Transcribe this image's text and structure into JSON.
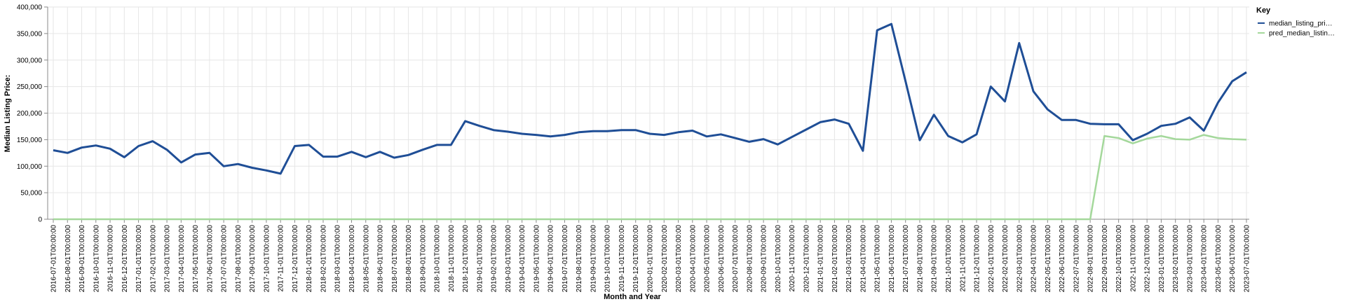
{
  "chart_data": {
    "type": "line",
    "xlabel": "Month and Year",
    "ylabel": "Median Listing Price:",
    "ylim": [
      0,
      400000
    ],
    "yticks": [
      0,
      50000,
      100000,
      150000,
      200000,
      250000,
      300000,
      350000,
      400000
    ],
    "y_tick_labels": [
      "0",
      "50,000",
      "100,000",
      "150,000",
      "200,000",
      "250,000",
      "300,000",
      "350,000",
      "400,000"
    ],
    "grid": true,
    "legend": {
      "title": "Key",
      "placement": "right",
      "labels": [
        "median_listing_pri…",
        "pred_median_listin…"
      ]
    },
    "x": [
      "2016-07-01T00:00:00",
      "2016-08-01T00:00:00",
      "2016-09-01T00:00:00",
      "2016-10-01T00:00:00",
      "2016-11-01T00:00:00",
      "2016-12-01T00:00:00",
      "2017-01-01T00:00:00",
      "2017-02-01T00:00:00",
      "2017-03-01T00:00:00",
      "2017-04-01T00:00:00",
      "2017-05-01T00:00:00",
      "2017-06-01T00:00:00",
      "2017-07-01T00:00:00",
      "2017-08-01T00:00:00",
      "2017-09-01T00:00:00",
      "2017-10-01T00:00:00",
      "2017-11-01T00:00:00",
      "2017-12-01T00:00:00",
      "2018-01-01T00:00:00",
      "2018-02-01T00:00:00",
      "2018-03-01T00:00:00",
      "2018-04-01T00:00:00",
      "2018-05-01T00:00:00",
      "2018-06-01T00:00:00",
      "2018-07-01T00:00:00",
      "2018-08-01T00:00:00",
      "2018-09-01T00:00:00",
      "2018-10-01T00:00:00",
      "2018-11-01T00:00:00",
      "2018-12-01T00:00:00",
      "2019-01-01T00:00:00",
      "2019-02-01T00:00:00",
      "2019-03-01T00:00:00",
      "2019-04-01T00:00:00",
      "2019-05-01T00:00:00",
      "2019-06-01T00:00:00",
      "2019-07-01T00:00:00",
      "2019-08-01T00:00:00",
      "2019-09-01T00:00:00",
      "2019-10-01T00:00:00",
      "2019-11-01T00:00:00",
      "2019-12-01T00:00:00",
      "2020-01-01T00:00:00",
      "2020-02-01T00:00:00",
      "2020-03-01T00:00:00",
      "2020-04-01T00:00:00",
      "2020-05-01T00:00:00",
      "2020-06-01T00:00:00",
      "2020-07-01T00:00:00",
      "2020-08-01T00:00:00",
      "2020-09-01T00:00:00",
      "2020-10-01T00:00:00",
      "2020-11-01T00:00:00",
      "2020-12-01T00:00:00",
      "2021-01-01T00:00:00",
      "2021-02-01T00:00:00",
      "2021-03-01T00:00:00",
      "2021-04-01T00:00:00",
      "2021-05-01T00:00:00",
      "2021-06-01T00:00:00",
      "2021-07-01T00:00:00",
      "2021-08-01T00:00:00",
      "2021-09-01T00:00:00",
      "2021-10-01T00:00:00",
      "2021-11-01T00:00:00",
      "2021-12-01T00:00:00",
      "2022-01-01T00:00:00",
      "2022-02-01T00:00:00",
      "2022-03-01T00:00:00",
      "2022-04-01T00:00:00",
      "2022-05-01T00:00:00",
      "2022-06-01T00:00:00",
      "2022-07-01T00:00:00",
      "2022-08-01T00:00:00",
      "2022-09-01T00:00:00",
      "2022-10-01T00:00:00",
      "2022-11-01T00:00:00",
      "2022-12-01T00:00:00",
      "2023-01-01T00:00:00",
      "2023-02-01T00:00:00",
      "2023-03-01T00:00:00",
      "2023-04-01T00:00:00",
      "2023-05-01T00:00:00",
      "2023-06-01T00:00:00",
      "2023-07-01T00:00:00"
    ],
    "series": [
      {
        "name": "median_listing_pri…",
        "color": "#1f4e96",
        "values": [
          130000,
          125000,
          135000,
          139000,
          133000,
          117000,
          138000,
          147000,
          131000,
          107000,
          122000,
          125000,
          100000,
          104000,
          97000,
          92000,
          86000,
          138000,
          140000,
          118000,
          118000,
          127000,
          117000,
          127000,
          116000,
          121000,
          131000,
          140000,
          140000,
          185000,
          176000,
          168000,
          165000,
          161000,
          159000,
          156000,
          159000,
          164000,
          166000,
          166000,
          168000,
          168000,
          161000,
          159000,
          164000,
          167000,
          156000,
          160000,
          153000,
          146000,
          151000,
          141000,
          155000,
          169000,
          183000,
          188000,
          180000,
          129000,
          356000,
          368000,
          260000,
          149000,
          197000,
          157000,
          145000,
          160000,
          250000,
          222000,
          332000,
          241000,
          207000,
          187000,
          187000,
          180000,
          179000,
          179000,
          149000,
          161000,
          176000,
          180000,
          192000,
          167000,
          220000,
          260000,
          277000
        ]
      },
      {
        "name": "pred_median_listin…",
        "color": "#a4d89b",
        "values": [
          0,
          0,
          0,
          0,
          0,
          0,
          0,
          0,
          0,
          0,
          0,
          0,
          0,
          0,
          0,
          0,
          0,
          0,
          0,
          0,
          0,
          0,
          0,
          0,
          0,
          0,
          0,
          0,
          0,
          0,
          0,
          0,
          0,
          0,
          0,
          0,
          0,
          0,
          0,
          0,
          0,
          0,
          0,
          0,
          0,
          0,
          0,
          0,
          0,
          0,
          0,
          0,
          0,
          0,
          0,
          0,
          0,
          0,
          0,
          0,
          0,
          0,
          0,
          0,
          0,
          0,
          0,
          0,
          0,
          0,
          0,
          0,
          0,
          0,
          157000,
          153000,
          143000,
          152000,
          157000,
          151000,
          150000,
          159000,
          153000,
          151000,
          150000
        ]
      }
    ]
  }
}
